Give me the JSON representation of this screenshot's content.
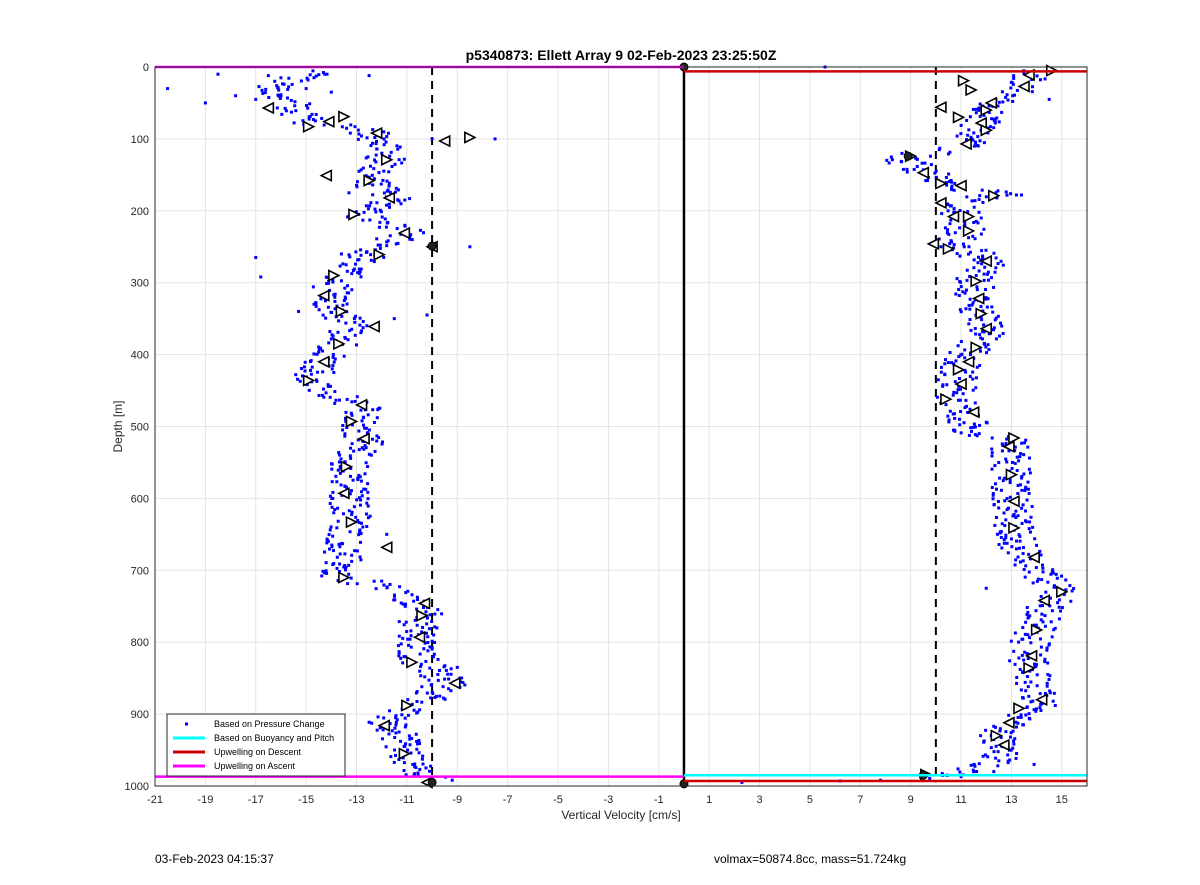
{
  "chart_data": {
    "type": "scatter",
    "title": "p5340873: Ellett Array 9 02-Feb-2023 23:25:50Z",
    "xlabel": "Vertical Velocity [cm/s]",
    "ylabel": "Depth [m]",
    "xlim": [
      -21,
      16
    ],
    "ylim": [
      0,
      1000
    ],
    "y_reversed": true,
    "grid": true,
    "legend_position": "bottom-left",
    "xticks": [
      -21,
      -19,
      -17,
      -15,
      -13,
      -11,
      -9,
      -7,
      -5,
      -3,
      -1,
      1,
      3,
      5,
      7,
      9,
      11,
      13,
      15
    ],
    "yticks": [
      0,
      100,
      200,
      300,
      400,
      500,
      600,
      700,
      800,
      900,
      1000
    ],
    "colors": {
      "pressure": "#0000ff",
      "buoyancy": "#00ffff",
      "descent": "#cc0000",
      "ascent": "#ff00ff"
    },
    "legend": [
      {
        "label": "Based on Pressure Change",
        "marker": "dot",
        "color": "#0000ff"
      },
      {
        "label": "Based on Buoyancy and Pitch",
        "marker": "line",
        "color": "#00ffff"
      },
      {
        "label": "Upwelling on Descent",
        "marker": "line",
        "color": "#cc0000"
      },
      {
        "label": "Upwelling on Ascent",
        "marker": "line",
        "color": "#ff00ff"
      }
    ],
    "reference_lines": [
      {
        "x": -10,
        "style": "dashed"
      },
      {
        "x": 10,
        "style": "dashed"
      },
      {
        "x": 0,
        "style": "solid"
      }
    ],
    "ascent_profile": [
      [
        -14,
        0
      ],
      [
        -16.5,
        30
      ],
      [
        -15.5,
        55
      ],
      [
        -14.8,
        80
      ],
      [
        -13.5,
        70
      ],
      [
        -12.2,
        100
      ],
      [
        -11.8,
        130
      ],
      [
        -12.5,
        160
      ],
      [
        -11.5,
        185
      ],
      [
        -12.8,
        205
      ],
      [
        -11,
        230
      ],
      [
        -12.5,
        260
      ],
      [
        -13.5,
        285
      ],
      [
        -14.2,
        320
      ],
      [
        -13.8,
        340
      ],
      [
        -13.2,
        365
      ],
      [
        -13.6,
        385
      ],
      [
        -14.2,
        410
      ],
      [
        -14.9,
        435
      ],
      [
        -13.8,
        455
      ],
      [
        -12.8,
        475
      ],
      [
        -13,
        495
      ],
      [
        -12.6,
        520
      ],
      [
        -13.3,
        550
      ],
      [
        -13.3,
        590
      ],
      [
        -13.2,
        630
      ],
      [
        -13.5,
        670
      ],
      [
        -13.7,
        710
      ],
      [
        -11.5,
        725
      ],
      [
        -10.4,
        760
      ],
      [
        -10.7,
        795
      ],
      [
        -10.5,
        825
      ],
      [
        -9.3,
        855
      ],
      [
        -10.5,
        885
      ],
      [
        -11.8,
        910
      ],
      [
        -11.2,
        935
      ],
      [
        -11,
        960
      ],
      [
        -10.2,
        990
      ]
    ],
    "ascent_scatter": [
      [
        -20.5,
        30
      ],
      [
        -18.5,
        10
      ],
      [
        -19,
        50
      ],
      [
        -17.8,
        40
      ],
      [
        -17,
        45
      ],
      [
        -16.5,
        12
      ],
      [
        -16,
        40
      ],
      [
        -14,
        35
      ],
      [
        -12.5,
        12
      ],
      [
        -12.2,
        95
      ],
      [
        -10,
        100
      ],
      [
        -7.5,
        100
      ],
      [
        -9.5,
        104
      ],
      [
        -8.5,
        250
      ],
      [
        -13.3,
        175
      ],
      [
        -11.8,
        650
      ],
      [
        -13.6,
        260
      ],
      [
        -17,
        265
      ],
      [
        -16.8,
        292
      ],
      [
        -15.3,
        340
      ],
      [
        -11.5,
        350
      ],
      [
        -10.2,
        345
      ],
      [
        -12,
        715
      ],
      [
        -9,
        835
      ],
      [
        -8.9,
        850
      ],
      [
        -10,
        997
      ],
      [
        -9.2,
        992
      ],
      [
        -16,
        15
      ],
      [
        -15,
        30
      ]
    ],
    "ascent_triangles": [
      [
        -16.5,
        57
      ],
      [
        -14.9,
        83
      ],
      [
        -14.1,
        76
      ],
      [
        -13.5,
        69
      ],
      [
        -12.2,
        92
      ],
      [
        -8.5,
        98
      ],
      [
        -9.5,
        103
      ],
      [
        -11.8,
        129
      ],
      [
        -14.2,
        151
      ],
      [
        -12.5,
        158
      ],
      [
        -11.7,
        182
      ],
      [
        -13.1,
        205
      ],
      [
        -11.1,
        231
      ],
      [
        -12.1,
        261
      ],
      [
        -10,
        250
      ],
      [
        -13.9,
        290
      ],
      [
        -14.3,
        318
      ],
      [
        -13.6,
        340
      ],
      [
        -12.3,
        361
      ],
      [
        -13.7,
        385
      ],
      [
        -14.3,
        410
      ],
      [
        -14.9,
        436
      ],
      [
        -12.8,
        470
      ],
      [
        -13.2,
        493
      ],
      [
        -12.7,
        517
      ],
      [
        -13.4,
        556
      ],
      [
        -13.5,
        593
      ],
      [
        -13.2,
        633
      ],
      [
        -11.8,
        668
      ],
      [
        -13.5,
        710
      ],
      [
        -10.3,
        746
      ],
      [
        -10.4,
        763
      ],
      [
        -10.5,
        793
      ],
      [
        -10.8,
        828
      ],
      [
        -9.1,
        857
      ],
      [
        -11,
        888
      ],
      [
        -11.9,
        916
      ],
      [
        -11.1,
        955
      ],
      [
        -10.2,
        995
      ]
    ],
    "descent_profile": [
      [
        14,
        0
      ],
      [
        13.8,
        15
      ],
      [
        13.5,
        30
      ],
      [
        12.8,
        40
      ],
      [
        12.2,
        55
      ],
      [
        11.8,
        75
      ],
      [
        11.6,
        100
      ],
      [
        11.2,
        110
      ],
      [
        10,
        120
      ],
      [
        9.2,
        122
      ],
      [
        8.6,
        128
      ],
      [
        9.1,
        138
      ],
      [
        9.7,
        150
      ],
      [
        10.1,
        165
      ],
      [
        11.2,
        170
      ],
      [
        12.5,
        175
      ],
      [
        11.2,
        190
      ],
      [
        10.8,
        210
      ],
      [
        11.2,
        230
      ],
      [
        10.5,
        245
      ],
      [
        11.2,
        255
      ],
      [
        12.1,
        270
      ],
      [
        11.6,
        285
      ],
      [
        11.6,
        300
      ],
      [
        11.4,
        320
      ],
      [
        11.7,
        345
      ],
      [
        12,
        365
      ],
      [
        11.8,
        380
      ],
      [
        11.3,
        395
      ],
      [
        11,
        420
      ],
      [
        10.8,
        445
      ],
      [
        10.6,
        460
      ],
      [
        11.2,
        480
      ],
      [
        11.4,
        505
      ],
      [
        12.8,
        520
      ],
      [
        13,
        550
      ],
      [
        13,
        600
      ],
      [
        13.1,
        645
      ],
      [
        13.5,
        685
      ],
      [
        14.5,
        715
      ],
      [
        15,
        730
      ],
      [
        14.3,
        755
      ],
      [
        13.9,
        785
      ],
      [
        13.6,
        815
      ],
      [
        13.7,
        840
      ],
      [
        14,
        865
      ],
      [
        14.2,
        885
      ],
      [
        13.2,
        905
      ],
      [
        12.6,
        925
      ],
      [
        12.3,
        945
      ],
      [
        12.7,
        965
      ],
      [
        10,
        990
      ]
    ],
    "descent_scatter": [
      [
        5.6,
        0
      ],
      [
        13.2,
        178
      ],
      [
        13.4,
        178
      ],
      [
        14.5,
        45
      ],
      [
        9.2,
        127
      ],
      [
        9.5,
        143
      ],
      [
        9.6,
        158
      ],
      [
        11.8,
        210
      ],
      [
        10.2,
        250
      ],
      [
        12,
        725
      ],
      [
        12.2,
        930
      ],
      [
        12.5,
        965
      ],
      [
        2.3,
        995
      ],
      [
        6.2,
        993
      ],
      [
        7.8,
        992
      ],
      [
        9.5,
        989
      ],
      [
        11,
        987
      ],
      [
        12.3,
        980
      ],
      [
        13.9,
        970
      ]
    ],
    "descent_triangles": [
      [
        14.6,
        5
      ],
      [
        13.7,
        11
      ],
      [
        11.1,
        19
      ],
      [
        13.5,
        27
      ],
      [
        11.4,
        32
      ],
      [
        12.2,
        50
      ],
      [
        12,
        60
      ],
      [
        10.2,
        56
      ],
      [
        10.9,
        70
      ],
      [
        11.8,
        78
      ],
      [
        12,
        88
      ],
      [
        11.2,
        107
      ],
      [
        9,
        124
      ],
      [
        9.5,
        147
      ],
      [
        10.2,
        162
      ],
      [
        11,
        165
      ],
      [
        12.3,
        179
      ],
      [
        10.2,
        189
      ],
      [
        11.3,
        208
      ],
      [
        10.7,
        208
      ],
      [
        11.3,
        228
      ],
      [
        9.9,
        246
      ],
      [
        10.5,
        253
      ],
      [
        12,
        270
      ],
      [
        11.6,
        298
      ],
      [
        11.7,
        322
      ],
      [
        11.8,
        343
      ],
      [
        12,
        364
      ],
      [
        11.6,
        390
      ],
      [
        11.3,
        410
      ],
      [
        10.9,
        421
      ],
      [
        11,
        441
      ],
      [
        10.4,
        462
      ],
      [
        11.5,
        480
      ],
      [
        13.1,
        516
      ],
      [
        12.9,
        528
      ],
      [
        13,
        567
      ],
      [
        13.1,
        604
      ],
      [
        13.1,
        641
      ],
      [
        13.9,
        682
      ],
      [
        15,
        730
      ],
      [
        14.3,
        742
      ],
      [
        14,
        783
      ],
      [
        13.8,
        819
      ],
      [
        13.7,
        836
      ],
      [
        14.2,
        880
      ],
      [
        13.3,
        892
      ],
      [
        12.9,
        912
      ],
      [
        12.4,
        930
      ],
      [
        12.7,
        943
      ],
      [
        9.6,
        984
      ]
    ],
    "markers_big": [
      [
        0,
        0
      ],
      [
        0,
        997
      ],
      [
        -10,
        995
      ],
      [
        9.5,
        985
      ],
      [
        8.9,
        124
      ],
      [
        -10,
        249
      ]
    ],
    "lines_horizontal": [
      {
        "series": "ascent",
        "x_from": -21,
        "x_to": 0,
        "y": 0
      },
      {
        "series": "descent",
        "x_from": 0,
        "x_to": 16,
        "y": 6
      },
      {
        "series": "ascent",
        "x_from": -21,
        "x_to": 0,
        "y": 987
      },
      {
        "series": "buoyancy",
        "x_from": 0,
        "x_to": 16,
        "y": 985
      },
      {
        "series": "descent",
        "x_from": 0,
        "x_to": 16,
        "y": 993
      }
    ]
  },
  "footer": {
    "left": "03-Feb-2023 04:15:37",
    "right": "volmax=50874.8cc, mass=51.724kg"
  }
}
